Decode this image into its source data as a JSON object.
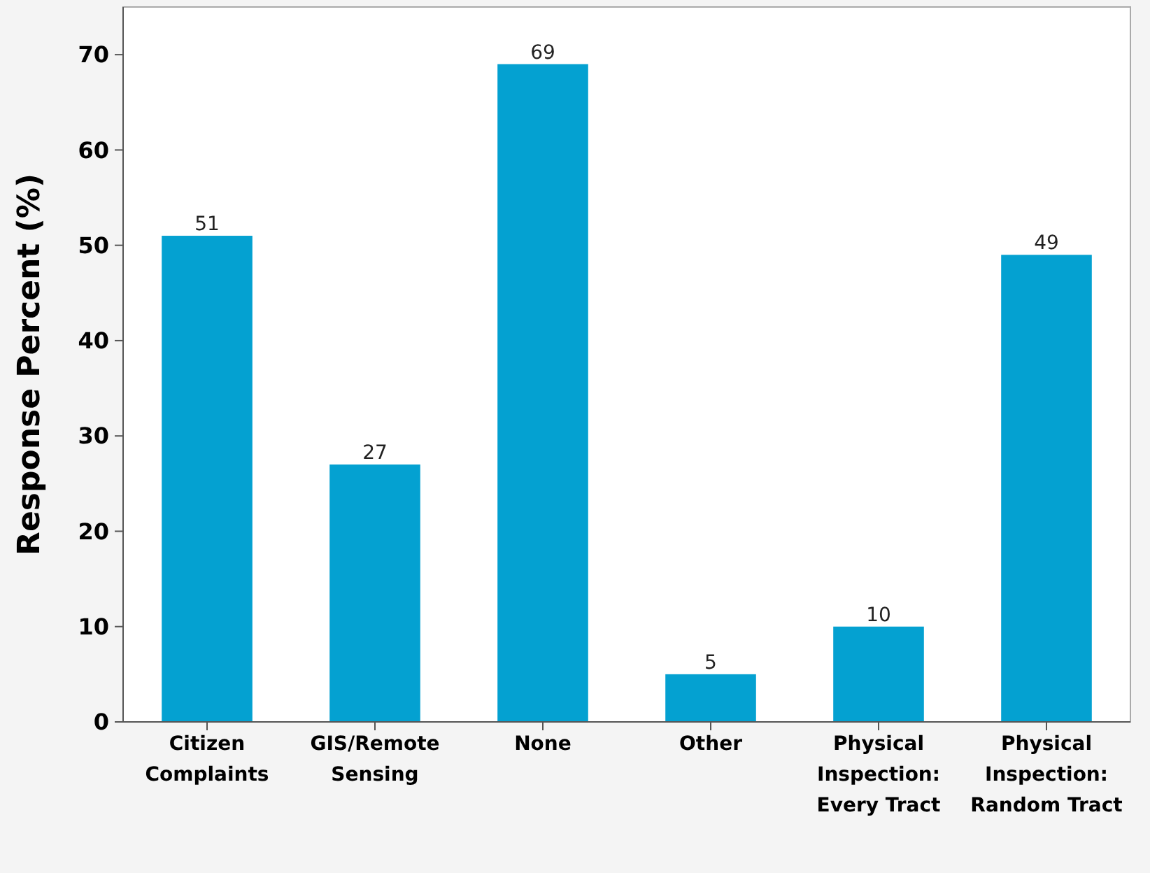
{
  "chart_data": {
    "type": "bar",
    "ylabel": "Response Percent (%)",
    "categories": [
      "Citizen Complaints",
      "GIS/Remote Sensing",
      "None",
      "Other",
      "Physical Inspection: Every Tract",
      "Physical Inspection: Random Tract"
    ],
    "values": [
      51,
      27,
      69,
      5,
      10,
      49
    ],
    "color": "#04a1d1",
    "ylim": [
      0,
      75
    ],
    "yticks": [
      0,
      10,
      20,
      30,
      40,
      50,
      60,
      70
    ],
    "data_labels": true,
    "grid": false
  }
}
